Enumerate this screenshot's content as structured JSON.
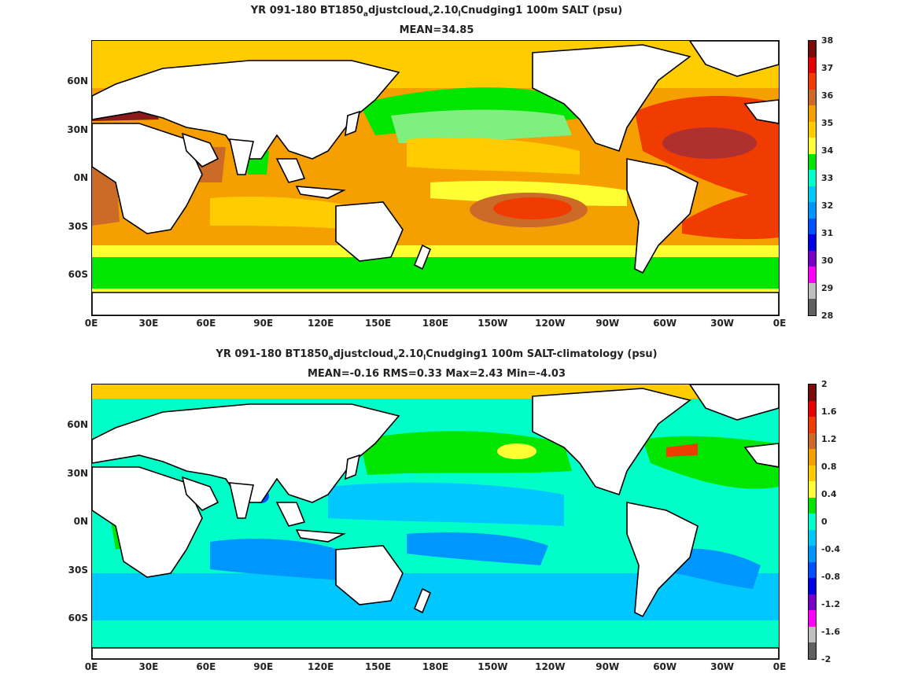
{
  "top": {
    "title_pre": "YR 091-180 BT1850",
    "title_sub1": "a",
    "title_mid1": "djustcloud",
    "title_sub2": "v",
    "title_mid2": "2.10",
    "title_sub3": "l",
    "title_post": "Cnudging1 100m SALT (psu)",
    "stats": "MEAN=34.85",
    "colorbar_ticks": [
      "38",
      "37",
      "36",
      "35",
      "34",
      "33",
      "32",
      "31",
      "30",
      "29",
      "28"
    ],
    "colorbar_colors": [
      "#7a0c0c",
      "#e60000",
      "#f03c00",
      "#cc6a28",
      "#f5a000",
      "#ffcc00",
      "#ffff33",
      "#00e600",
      "#00ffc8",
      "#00c8ff",
      "#0096ff",
      "#0050ff",
      "#0000e6",
      "#7800c8",
      "#ff00ff",
      "#bfbfbf",
      "#606060"
    ]
  },
  "bottom": {
    "title_pre": "YR 091-180 BT1850",
    "title_sub1": "a",
    "title_mid1": "djustcloud",
    "title_sub2": "v",
    "title_mid2": "2.10",
    "title_sub3": "l",
    "title_post": "Cnudging1 100m SALT-climatology (psu)",
    "stats": "MEAN=-0.16   RMS=0.33   Max=2.43   Min=-4.03",
    "colorbar_ticks": [
      "2",
      "1.6",
      "1.2",
      "0.8",
      "0.4",
      "0",
      "-0.4",
      "-0.8",
      "-1.2",
      "-1.6",
      "-2"
    ],
    "colorbar_colors": [
      "#7a0c0c",
      "#e60000",
      "#f03c00",
      "#cc6a28",
      "#f5a000",
      "#ffcc00",
      "#ffff33",
      "#00e600",
      "#00ffc8",
      "#00c8ff",
      "#0096ff",
      "#0050ff",
      "#0000e6",
      "#7800c8",
      "#ff00ff",
      "#bfbfbf",
      "#606060"
    ]
  },
  "lat_labels": [
    "60N",
    "30N",
    "0N",
    "30S",
    "60S"
  ],
  "lon_labels": [
    "0E",
    "30E",
    "60E",
    "90E",
    "120E",
    "150E",
    "180E",
    "150W",
    "120W",
    "90W",
    "60W",
    "30W",
    "0E"
  ],
  "colors": {
    "land": "#ffffff",
    "coast": "#000000"
  }
}
